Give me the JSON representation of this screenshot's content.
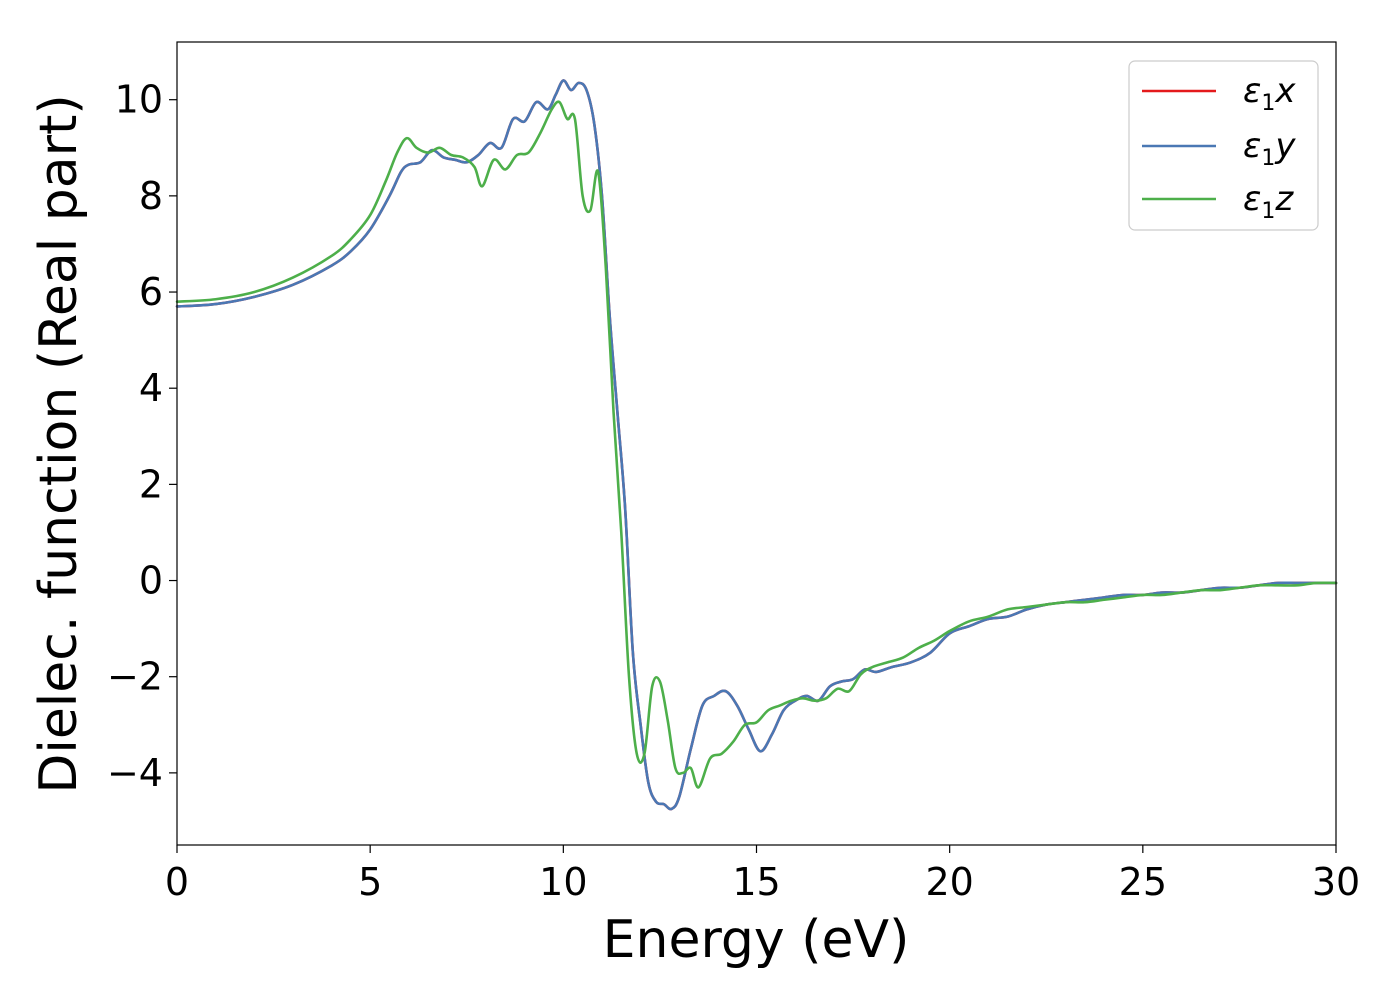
{
  "chart_data": {
    "type": "line",
    "title": "",
    "xlabel": "Energy (eV)",
    "ylabel": "Dielec. function (Real part)",
    "xlim": [
      0,
      30
    ],
    "ylim": [
      -5.5,
      11.2
    ],
    "xticks": [
      0,
      5,
      10,
      15,
      20,
      25,
      30
    ],
    "yticks": [
      -4,
      -2,
      0,
      2,
      4,
      6,
      8,
      10
    ],
    "xtick_labels": [
      "0",
      "5",
      "10",
      "15",
      "20",
      "25",
      "30"
    ],
    "ytick_labels": [
      "−4",
      "−2",
      "0",
      "2",
      "4",
      "6",
      "8",
      "10"
    ],
    "grid": false,
    "legend_position": "upper right",
    "series": [
      {
        "name": "ε₁x",
        "legend_main": "ε",
        "legend_sub": "1",
        "legend_tail": "x",
        "color": "#e41a1c",
        "x": [
          0,
          1,
          2,
          3,
          4,
          4.5,
          5,
          5.5,
          5.8,
          6,
          6.3,
          6.6,
          6.9,
          7.2,
          7.5,
          7.8,
          8.1,
          8.4,
          8.7,
          9.0,
          9.3,
          9.6,
          9.8,
          10.0,
          10.2,
          10.4,
          10.6,
          10.8,
          11.0,
          11.2,
          11.4,
          11.6,
          11.8,
          12.0,
          12.2,
          12.4,
          12.6,
          12.8,
          13.0,
          13.3,
          13.6,
          13.9,
          14.2,
          14.5,
          14.8,
          15.1,
          15.4,
          15.7,
          16.0,
          16.3,
          16.6,
          16.9,
          17.2,
          17.5,
          17.8,
          18.1,
          18.5,
          19.0,
          19.5,
          20.0,
          20.5,
          21.0,
          21.5,
          22.0,
          22.5,
          23.0,
          23.5,
          24.0,
          24.5,
          25.0,
          25.5,
          26.0,
          26.5,
          27.0,
          27.5,
          28.0,
          28.5,
          29.0,
          29.5,
          30.0
        ],
        "values": [
          5.7,
          5.75,
          5.9,
          6.15,
          6.55,
          6.85,
          7.3,
          8.0,
          8.5,
          8.65,
          8.7,
          8.95,
          8.8,
          8.75,
          8.7,
          8.85,
          9.1,
          9.0,
          9.6,
          9.55,
          9.95,
          9.8,
          10.1,
          10.4,
          10.2,
          10.35,
          10.2,
          9.5,
          8.0,
          5.5,
          3.5,
          1.5,
          -1.5,
          -3.0,
          -4.2,
          -4.6,
          -4.65,
          -4.75,
          -4.5,
          -3.5,
          -2.6,
          -2.4,
          -2.3,
          -2.6,
          -3.1,
          -3.55,
          -3.2,
          -2.7,
          -2.5,
          -2.4,
          -2.5,
          -2.2,
          -2.1,
          -2.05,
          -1.85,
          -1.9,
          -1.8,
          -1.7,
          -1.5,
          -1.1,
          -0.95,
          -0.8,
          -0.75,
          -0.6,
          -0.5,
          -0.45,
          -0.4,
          -0.35,
          -0.3,
          -0.3,
          -0.25,
          -0.25,
          -0.2,
          -0.15,
          -0.15,
          -0.1,
          -0.05,
          -0.05,
          -0.05,
          -0.05
        ]
      },
      {
        "name": "ε₁y",
        "legend_main": "ε",
        "legend_sub": "1",
        "legend_tail": "y",
        "color": "#4a78b4",
        "x": [
          0,
          1,
          2,
          3,
          4,
          4.5,
          5,
          5.5,
          5.8,
          6,
          6.3,
          6.6,
          6.9,
          7.2,
          7.5,
          7.8,
          8.1,
          8.4,
          8.7,
          9.0,
          9.3,
          9.6,
          9.8,
          10.0,
          10.2,
          10.4,
          10.6,
          10.8,
          11.0,
          11.2,
          11.4,
          11.6,
          11.8,
          12.0,
          12.2,
          12.4,
          12.6,
          12.8,
          13.0,
          13.3,
          13.6,
          13.9,
          14.2,
          14.5,
          14.8,
          15.1,
          15.4,
          15.7,
          16.0,
          16.3,
          16.6,
          16.9,
          17.2,
          17.5,
          17.8,
          18.1,
          18.5,
          19.0,
          19.5,
          20.0,
          20.5,
          21.0,
          21.5,
          22.0,
          22.5,
          23.0,
          23.5,
          24.0,
          24.5,
          25.0,
          25.5,
          26.0,
          26.5,
          27.0,
          27.5,
          28.0,
          28.5,
          29.0,
          29.5,
          30.0
        ],
        "values": [
          5.7,
          5.75,
          5.9,
          6.15,
          6.55,
          6.85,
          7.3,
          8.0,
          8.5,
          8.65,
          8.7,
          8.95,
          8.8,
          8.75,
          8.7,
          8.85,
          9.1,
          9.0,
          9.6,
          9.55,
          9.95,
          9.8,
          10.1,
          10.4,
          10.2,
          10.35,
          10.2,
          9.5,
          8.0,
          5.5,
          3.5,
          1.5,
          -1.5,
          -3.0,
          -4.2,
          -4.6,
          -4.65,
          -4.75,
          -4.5,
          -3.5,
          -2.6,
          -2.4,
          -2.3,
          -2.6,
          -3.1,
          -3.55,
          -3.2,
          -2.7,
          -2.5,
          -2.4,
          -2.5,
          -2.2,
          -2.1,
          -2.05,
          -1.85,
          -1.9,
          -1.8,
          -1.7,
          -1.5,
          -1.1,
          -0.95,
          -0.8,
          -0.75,
          -0.6,
          -0.5,
          -0.45,
          -0.4,
          -0.35,
          -0.3,
          -0.3,
          -0.25,
          -0.25,
          -0.2,
          -0.15,
          -0.15,
          -0.1,
          -0.05,
          -0.05,
          -0.05,
          -0.05
        ]
      },
      {
        "name": "ε₁z",
        "legend_main": "ε",
        "legend_sub": "1",
        "legend_tail": "z",
        "color": "#4daf4a",
        "x": [
          0,
          1,
          2,
          3,
          4,
          4.5,
          5,
          5.4,
          5.7,
          5.95,
          6.2,
          6.5,
          6.8,
          7.1,
          7.4,
          7.7,
          7.9,
          8.2,
          8.5,
          8.8,
          9.1,
          9.4,
          9.7,
          9.9,
          10.1,
          10.3,
          10.5,
          10.7,
          10.9,
          11.1,
          11.3,
          11.5,
          11.7,
          11.9,
          12.1,
          12.3,
          12.5,
          12.7,
          12.9,
          13.1,
          13.3,
          13.5,
          13.8,
          14.1,
          14.4,
          14.7,
          15.0,
          15.3,
          15.6,
          15.9,
          16.2,
          16.5,
          16.8,
          17.1,
          17.4,
          17.7,
          18.0,
          18.4,
          18.8,
          19.2,
          19.6,
          20.0,
          20.5,
          21.0,
          21.5,
          22.0,
          22.5,
          23.0,
          23.5,
          24.0,
          24.5,
          25.0,
          25.5,
          26.0,
          26.5,
          27.0,
          27.5,
          28.0,
          28.5,
          29.0,
          29.5,
          30.0
        ],
        "values": [
          5.8,
          5.85,
          6.0,
          6.3,
          6.75,
          7.1,
          7.6,
          8.3,
          8.9,
          9.2,
          9.0,
          8.9,
          9.0,
          8.85,
          8.8,
          8.6,
          8.2,
          8.75,
          8.55,
          8.85,
          8.9,
          9.3,
          9.8,
          9.95,
          9.6,
          9.6,
          8.0,
          7.7,
          8.5,
          6.5,
          3.5,
          1.0,
          -2.0,
          -3.6,
          -3.6,
          -2.2,
          -2.1,
          -2.9,
          -3.9,
          -4.0,
          -3.9,
          -4.3,
          -3.7,
          -3.6,
          -3.35,
          -3.0,
          -2.95,
          -2.7,
          -2.6,
          -2.5,
          -2.45,
          -2.5,
          -2.45,
          -2.25,
          -2.3,
          -1.95,
          -1.8,
          -1.7,
          -1.6,
          -1.4,
          -1.25,
          -1.05,
          -0.85,
          -0.75,
          -0.6,
          -0.55,
          -0.5,
          -0.45,
          -0.45,
          -0.4,
          -0.35,
          -0.3,
          -0.3,
          -0.25,
          -0.2,
          -0.2,
          -0.15,
          -0.1,
          -0.1,
          -0.1,
          -0.05,
          -0.05
        ]
      }
    ]
  }
}
